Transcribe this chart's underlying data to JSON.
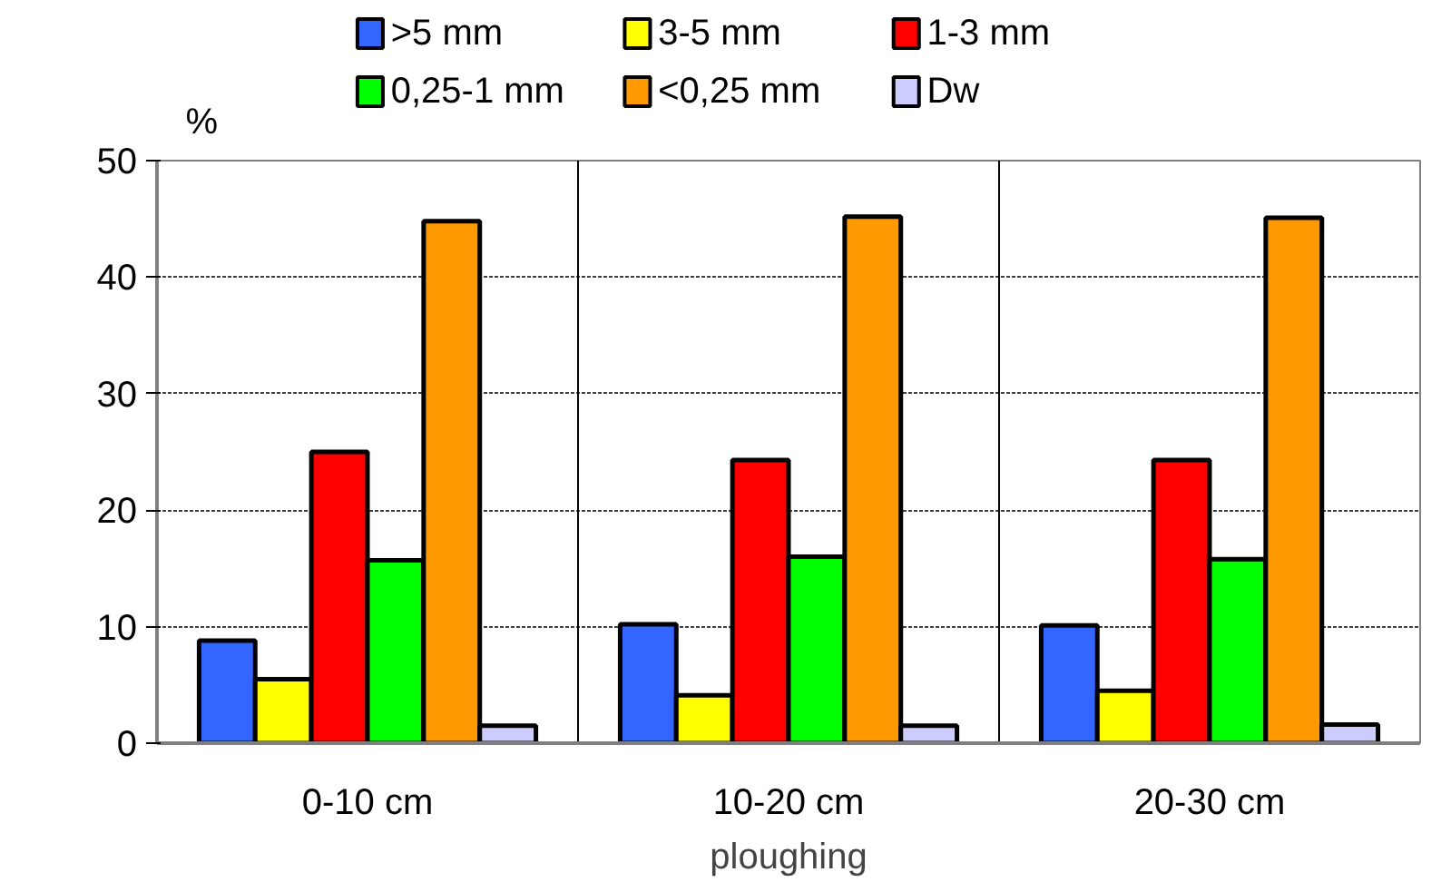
{
  "chart_data": {
    "type": "bar",
    "xlabel": "ploughing",
    "ylabel": "%",
    "categories": [
      "0-10 cm",
      "10-20 cm",
      "20-30 cm"
    ],
    "series": [
      {
        "name": ">5 mm",
        "color": "#3366ff",
        "values": [
          8.8,
          10.2,
          10.1
        ]
      },
      {
        "name": "3-5 mm",
        "color": "#ffff00",
        "values": [
          5.5,
          4.1,
          4.5
        ]
      },
      {
        "name": "1-3 mm",
        "color": "#ff0000",
        "values": [
          25.0,
          24.3,
          24.3
        ]
      },
      {
        "name": "0,25-1 mm",
        "color": "#00ff00",
        "values": [
          15.7,
          16.0,
          15.8
        ]
      },
      {
        "name": "<0,25 mm",
        "color": "#ff9900",
        "values": [
          44.8,
          45.2,
          45.1
        ]
      },
      {
        "name": "Dw",
        "color": "#ccccff",
        "values": [
          1.5,
          1.5,
          1.6
        ]
      }
    ],
    "ylim": [
      0,
      50
    ],
    "yticks": [
      0,
      10,
      20,
      30,
      40,
      50
    ],
    "grid": true,
    "legend": "top"
  }
}
